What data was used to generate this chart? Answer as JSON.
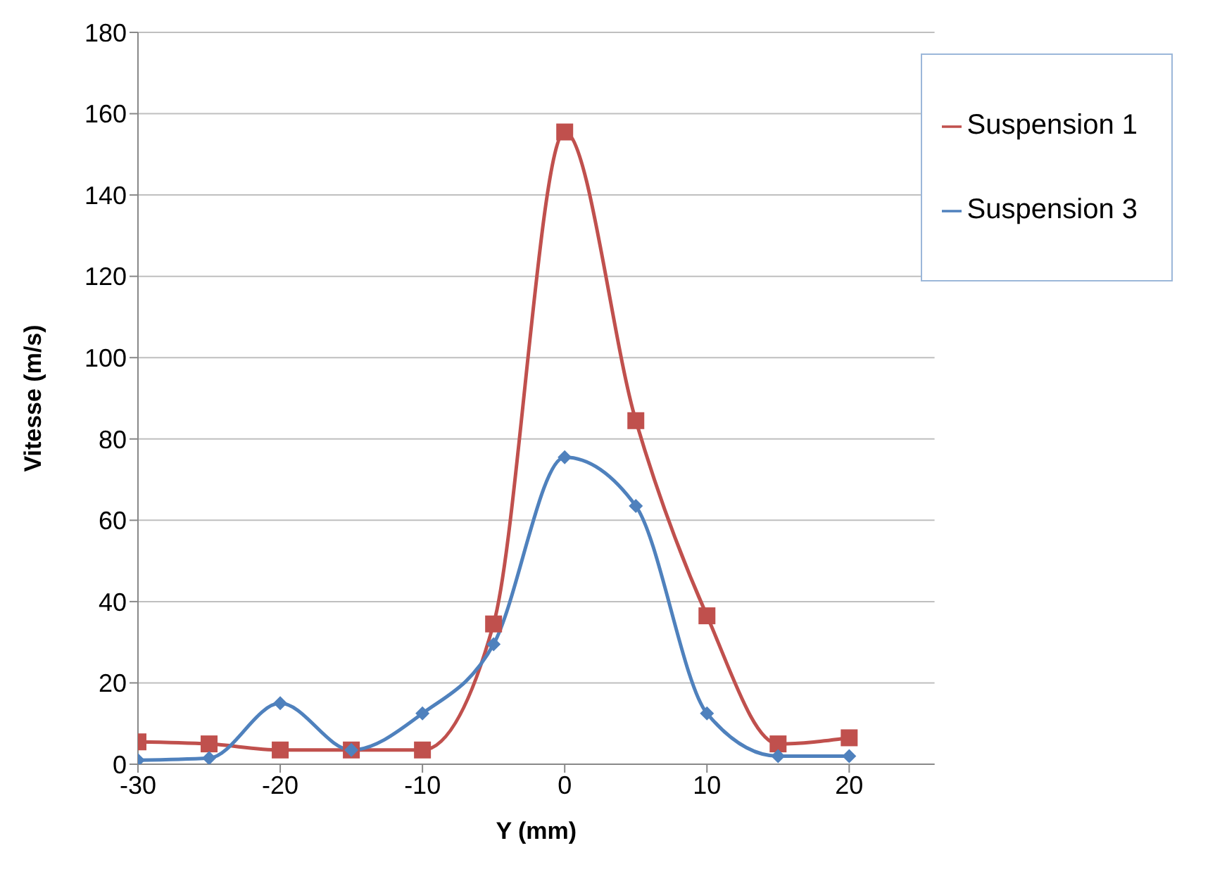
{
  "chart_data": {
    "type": "line",
    "xlabel": "Y (mm)",
    "ylabel": "Vitesse (m/s)",
    "x": [
      -30,
      -25,
      -20,
      -15,
      -10,
      -5,
      0,
      5,
      10,
      15,
      20
    ],
    "series": [
      {
        "name": "Suspension 1",
        "color": "#c0504d",
        "marker": "square",
        "values": [
          5.5,
          5,
          3.5,
          3.5,
          3.5,
          34.5,
          155.5,
          84.5,
          36.5,
          5,
          6.5
        ]
      },
      {
        "name": "Suspension 3",
        "color": "#4f81bd",
        "marker": "diamond",
        "values": [
          1,
          1.5,
          15,
          3.5,
          12.5,
          29.5,
          75.5,
          63.5,
          12.5,
          2,
          2
        ]
      }
    ],
    "xlim": [
      -30,
      26
    ],
    "xticks": [
      -30,
      -20,
      -10,
      0,
      10,
      20
    ],
    "ylim": [
      0,
      180
    ],
    "yticks": [
      0,
      20,
      40,
      60,
      80,
      100,
      120,
      140,
      160,
      180
    ],
    "grid": "y",
    "legend": "top right",
    "line_style": "solid"
  }
}
